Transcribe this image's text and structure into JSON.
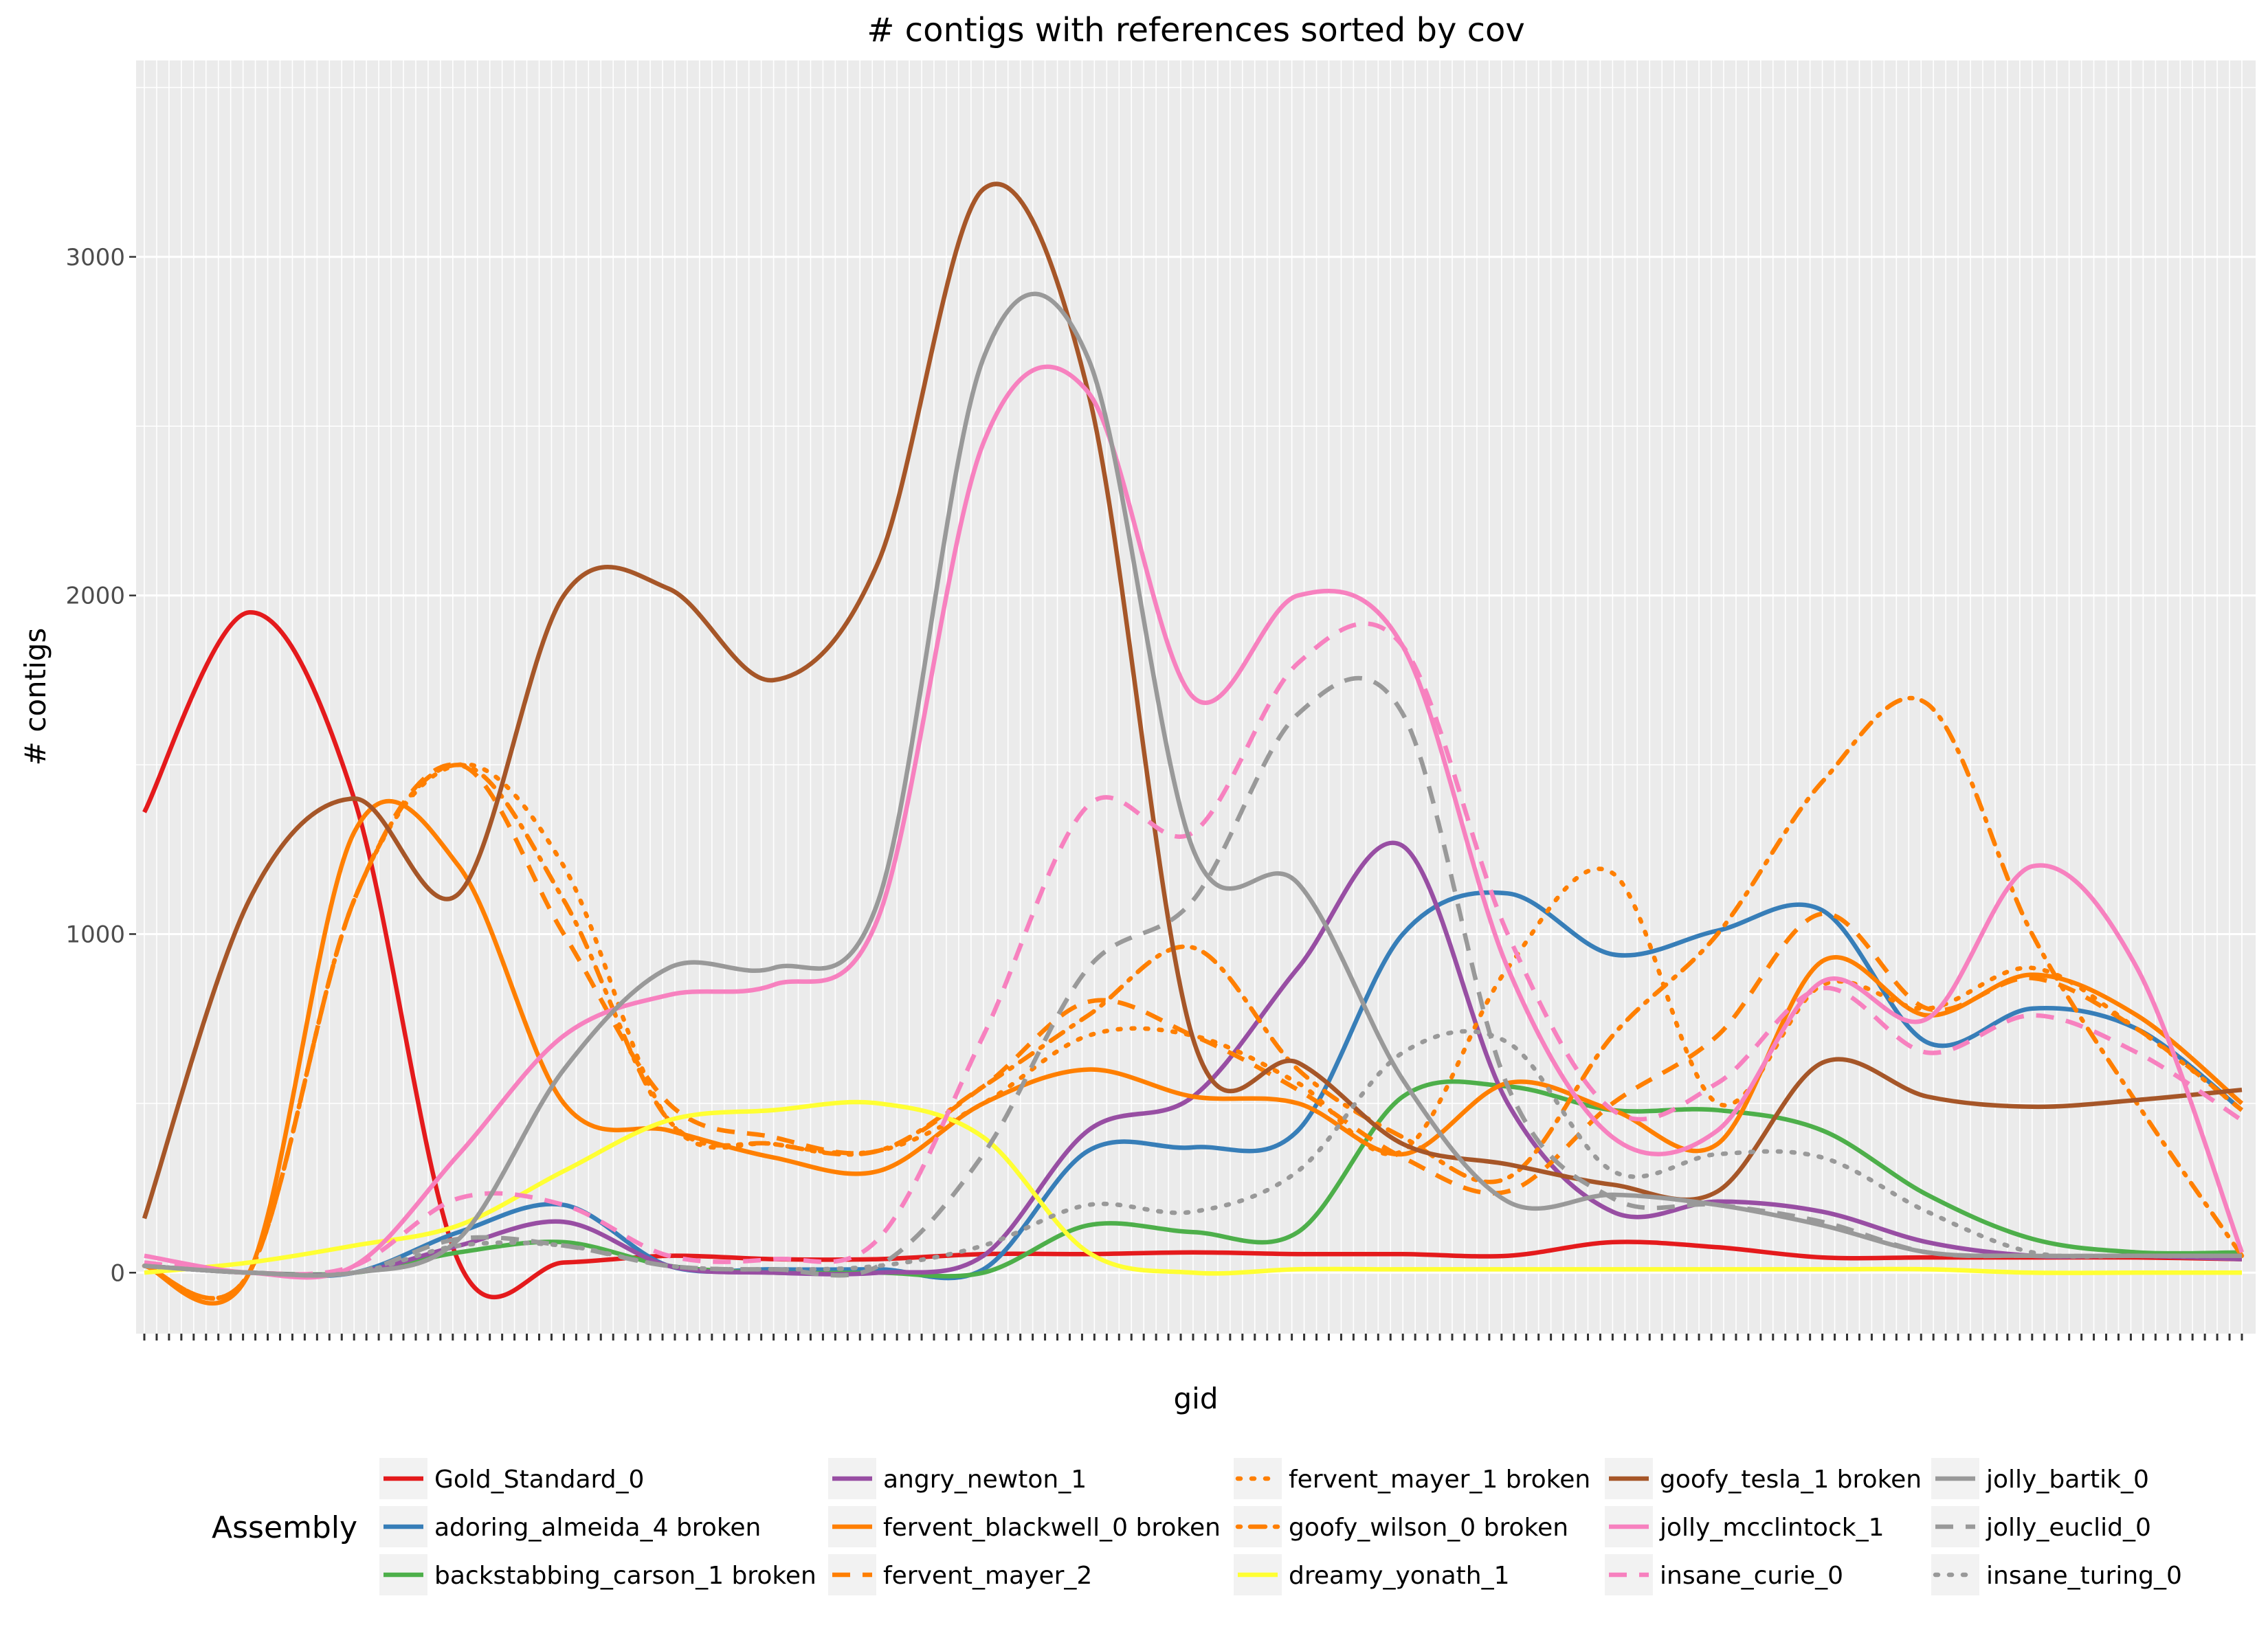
{
  "chart_data": {
    "type": "line",
    "title": "# contigs with references sorted by cov",
    "xlabel": "gid",
    "ylabel": "# contigs",
    "ylim": [
      -180,
      3580
    ],
    "y_ticks": [
      0,
      1000,
      2000,
      3000
    ],
    "grid": true,
    "legend_title": "Assembly",
    "legend_position": "bottom",
    "x_points": 21,
    "series": [
      {
        "name": "Gold_Standard_0",
        "color": "#e41a1c",
        "dash": "solid",
        "values": [
          1360,
          1950,
          1400,
          30,
          30,
          50,
          40,
          40,
          55,
          55,
          60,
          55,
          55,
          50,
          90,
          75,
          45,
          45,
          45,
          45,
          40
        ]
      },
      {
        "name": "adoring_almeida_4 broken",
        "color": "#377eb8",
        "dash": "solid",
        "values": [
          20,
          0,
          0,
          120,
          200,
          20,
          10,
          10,
          10,
          360,
          370,
          420,
          1000,
          1120,
          940,
          1010,
          1070,
          680,
          780,
          720,
          480
        ]
      },
      {
        "name": "backstabbing_carson_1 broken",
        "color": "#4daf4a",
        "dash": "solid",
        "values": [
          20,
          0,
          0,
          60,
          90,
          20,
          0,
          0,
          0,
          140,
          120,
          120,
          520,
          550,
          480,
          480,
          420,
          230,
          100,
          60,
          60
        ]
      },
      {
        "name": "angry_newton_1",
        "color": "#984ea3",
        "dash": "solid",
        "values": [
          20,
          0,
          0,
          80,
          150,
          20,
          0,
          0,
          50,
          420,
          520,
          900,
          1260,
          500,
          180,
          210,
          180,
          90,
          50,
          50,
          40
        ]
      },
      {
        "name": "fervent_blackwell_0 broken",
        "color": "#ff7f00",
        "dash": "solid",
        "values": [
          20,
          0,
          1300,
          1200,
          500,
          420,
          340,
          300,
          500,
          600,
          520,
          500,
          350,
          560,
          480,
          380,
          920,
          760,
          880,
          760,
          500
        ]
      },
      {
        "name": "fervent_mayer_2",
        "color": "#ff7f00",
        "dash": "dash",
        "values": [
          20,
          0,
          1100,
          1500,
          1000,
          500,
          400,
          360,
          550,
          800,
          700,
          540,
          340,
          240,
          500,
          700,
          1060,
          780,
          870,
          720,
          480
        ]
      },
      {
        "name": "fervent_mayer_1 broken",
        "color": "#ff7f00",
        "dash": "dot",
        "values": [
          20,
          0,
          1100,
          1500,
          1200,
          450,
          380,
          360,
          500,
          700,
          700,
          560,
          360,
          900,
          1180,
          500,
          850,
          780,
          900,
          720,
          480
        ]
      },
      {
        "name": "goofy_wilson_0 broken",
        "color": "#ff7f00",
        "dash": "dashdot",
        "values": [
          20,
          0,
          1100,
          1500,
          1100,
          450,
          380,
          360,
          550,
          760,
          960,
          600,
          400,
          280,
          700,
          1000,
          1450,
          1680,
          1000,
          500,
          50
        ]
      },
      {
        "name": "dreamy_yonath_1",
        "color": "#ffff33",
        "dash": "solid",
        "values": [
          0,
          30,
          80,
          140,
          300,
          450,
          480,
          500,
          400,
          60,
          0,
          10,
          10,
          10,
          10,
          10,
          10,
          10,
          0,
          0,
          0
        ]
      },
      {
        "name": "goofy_tesla_1 broken",
        "color": "#a65628",
        "dash": "solid",
        "values": [
          160,
          1100,
          1400,
          1120,
          2000,
          2020,
          1750,
          2100,
          3200,
          2600,
          690,
          620,
          380,
          320,
          260,
          240,
          620,
          520,
          490,
          510,
          540
        ]
      },
      {
        "name": "jolly_mcclintock_1",
        "color": "#f781bf",
        "dash": "solid",
        "values": [
          50,
          0,
          20,
          350,
          700,
          820,
          850,
          1050,
          2450,
          2600,
          1700,
          2000,
          1850,
          900,
          400,
          420,
          860,
          750,
          1200,
          900,
          60
        ]
      },
      {
        "name": "insane_curie_0",
        "color": "#f781bf",
        "dash": "dash",
        "values": [
          30,
          0,
          20,
          220,
          200,
          50,
          40,
          100,
          700,
          1380,
          1300,
          1800,
          1850,
          1000,
          480,
          560,
          840,
          650,
          760,
          650,
          450
        ]
      },
      {
        "name": "jolly_bartik_0",
        "color": "#999999",
        "dash": "solid",
        "values": [
          20,
          0,
          0,
          100,
          600,
          900,
          900,
          1100,
          2700,
          2700,
          1250,
          1150,
          570,
          210,
          230,
          200,
          140,
          60,
          50,
          50,
          50
        ]
      },
      {
        "name": "jolly_euclid_0",
        "color": "#999999",
        "dash": "dash",
        "values": [
          20,
          0,
          0,
          100,
          80,
          20,
          10,
          20,
          350,
          900,
          1100,
          1650,
          1650,
          550,
          220,
          200,
          150,
          60,
          50,
          50,
          50
        ]
      },
      {
        "name": "insane_turing_0",
        "color": "#999999",
        "dash": "dot",
        "values": [
          20,
          0,
          0,
          80,
          80,
          20,
          10,
          20,
          80,
          200,
          180,
          300,
          650,
          680,
          300,
          350,
          340,
          180,
          60,
          50,
          50
        ]
      }
    ]
  }
}
